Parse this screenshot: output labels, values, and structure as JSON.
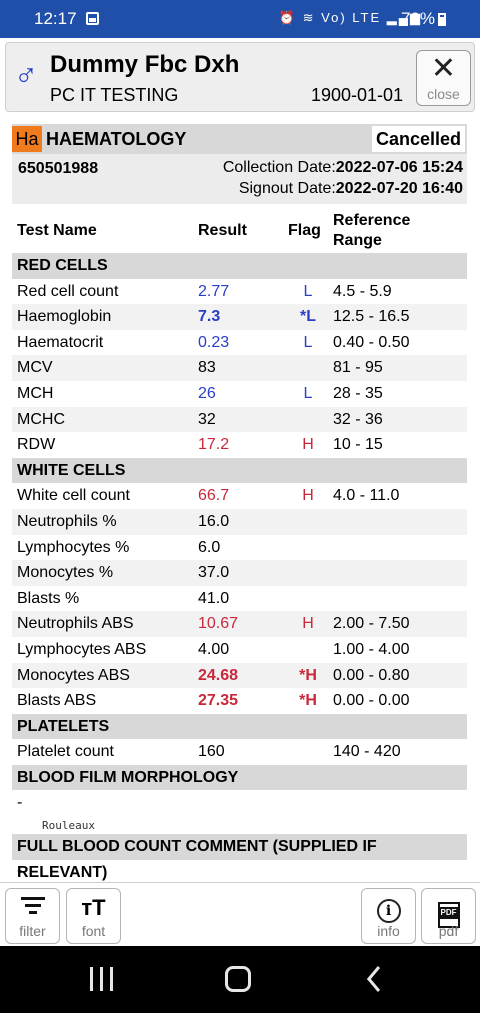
{
  "status_bar": {
    "time": "12:17",
    "battery": "79%",
    "signal_text": "Vo) LTE"
  },
  "patient": {
    "sex_symbol": "♂",
    "name": "Dummy Fbc Dxh",
    "org": "PC IT TESTING",
    "dob": "1900-01-01",
    "close_label": "close"
  },
  "section": {
    "badge": "Ha",
    "title": "HAEMATOLOGY",
    "status": "Cancelled"
  },
  "meta": {
    "accession": "650501988",
    "collection_label": "Collection Date:",
    "collection_value": "2022-07-06 15:24",
    "signout_label": "Signout Date:",
    "signout_value": "2022-07-20 16:40"
  },
  "columns": {
    "test": "Test Name",
    "result": "Result",
    "flag": "Flag",
    "ref_line1": "Reference",
    "ref_line2": "Range"
  },
  "rows": [
    {
      "group": "RED CELLS"
    },
    {
      "name": "Red cell count",
      "result": "2.77",
      "flag": "L",
      "ref": "4.5 - 5.9"
    },
    {
      "name": "Haemoglobin",
      "result": "7.3",
      "flag": "*L",
      "ref": "12.5 - 16.5"
    },
    {
      "name": "Haematocrit",
      "result": "0.23",
      "flag": "L",
      "ref": "0.40 - 0.50"
    },
    {
      "name": "MCV",
      "result": "83",
      "flag": "",
      "ref": "81 - 95"
    },
    {
      "name": "MCH",
      "result": "26",
      "flag": "L",
      "ref": "28 - 35"
    },
    {
      "name": "MCHC",
      "result": "32",
      "flag": "",
      "ref": "32 - 36"
    },
    {
      "name": "RDW",
      "result": "17.2",
      "flag": "H",
      "ref": "10 - 15"
    },
    {
      "group": "WHITE CELLS"
    },
    {
      "name": "White cell count",
      "result": "66.7",
      "flag": "H",
      "ref": "4.0 - 11.0"
    },
    {
      "name": "Neutrophils %",
      "result": "16.0",
      "flag": "",
      "ref": ""
    },
    {
      "name": "Lymphocytes %",
      "result": "6.0",
      "flag": "",
      "ref": ""
    },
    {
      "name": "Monocytes %",
      "result": "37.0",
      "flag": "",
      "ref": ""
    },
    {
      "name": "Blasts %",
      "result": "41.0",
      "flag": "",
      "ref": ""
    },
    {
      "name": "Neutrophils ABS",
      "result": "10.67",
      "flag": "H",
      "ref": "2.00 - 7.50"
    },
    {
      "name": "Lymphocytes ABS",
      "result": "4.00",
      "flag": "",
      "ref": "1.00 - 4.00"
    },
    {
      "name": "Monocytes ABS",
      "result": "24.68",
      "flag": "*H",
      "ref": "0.00 - 0.80"
    },
    {
      "name": "Blasts ABS",
      "result": "27.35",
      "flag": "*H",
      "ref": "0.00 - 0.00"
    },
    {
      "group": "PLATELETS"
    },
    {
      "name": "Platelet count",
      "result": "160",
      "flag": "",
      "ref": "140 - 420"
    },
    {
      "group": "BLOOD FILM MORPHOLOGY"
    }
  ],
  "blood_film": {
    "dash": "-",
    "note": "Rouleaux"
  },
  "fbc_comment": {
    "title": "FULL BLOOD COUNT COMMENT (SUPPLIED IF RELEVANT)",
    "dash": "-"
  },
  "toolbar": {
    "filter": "filter",
    "font": "font",
    "info": "info",
    "pdf": "pdf",
    "font_icon": "тT",
    "info_icon": "i",
    "pdf_icon": "PDF"
  },
  "colors": {
    "low": "#2a3ec8",
    "high": "#c8283c",
    "badge": "#f07b1c",
    "status_bar": "#1f4fa8"
  }
}
